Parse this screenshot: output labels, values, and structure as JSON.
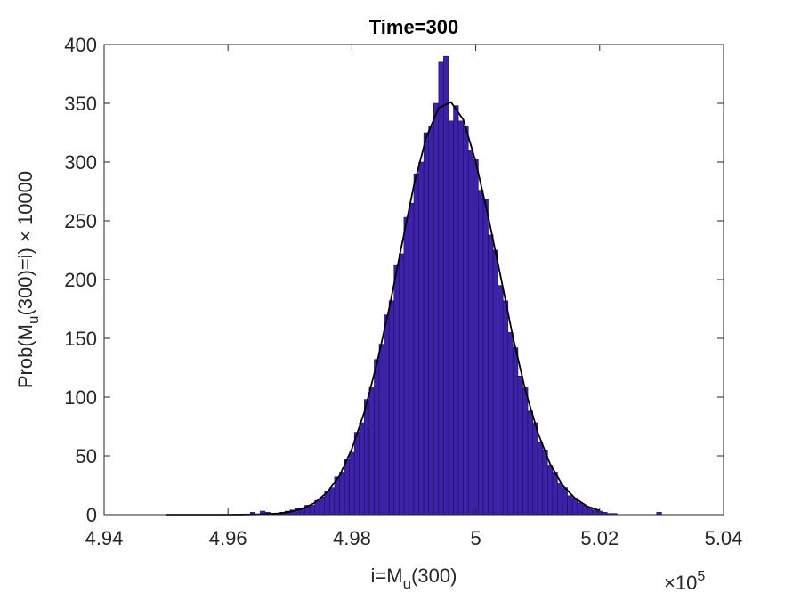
{
  "chart_data": {
    "type": "histogram",
    "title": "Time=300",
    "xlabel": {
      "text": "i=M",
      "sub": "u",
      "after": "(300)"
    },
    "ylabel": {
      "text": "Prob(M",
      "sub": "u",
      "after": "(300)=i) × 10000"
    },
    "x_multiplier": {
      "base": "×10",
      "exp": "5"
    },
    "xlim": [
      4.94,
      5.04
    ],
    "xticks": [
      4.94,
      4.96,
      4.98,
      5,
      5.02,
      5.04
    ],
    "ylim": [
      0,
      400
    ],
    "yticks": [
      0,
      50,
      100,
      150,
      200,
      250,
      300,
      350,
      400
    ],
    "color": "#3b22a6",
    "edge_color": "#1c1060",
    "bins": [
      4.95,
      4.9508,
      4.9516,
      4.9524,
      4.9532,
      4.954,
      4.9548,
      4.9556,
      4.9564,
      4.9572,
      4.958,
      4.9588,
      4.9596,
      4.9604,
      4.9612,
      4.962,
      4.9628,
      4.9636,
      4.9644,
      4.9652,
      4.966,
      4.9668,
      4.9676,
      4.9684,
      4.9692,
      4.97,
      4.9708,
      4.9716,
      4.9724,
      4.9732,
      4.974,
      4.9748,
      4.9756,
      4.9764,
      4.9772,
      4.978,
      4.9788,
      4.9796,
      4.9804,
      4.9812,
      4.982,
      4.9828,
      4.9836,
      4.9844,
      4.9852,
      4.986,
      4.9868,
      4.9876,
      4.9884,
      4.9892,
      4.99,
      4.9908,
      4.9916,
      4.9924,
      4.9932,
      4.994,
      4.9948,
      4.9956,
      4.9964,
      4.9972,
      4.998,
      4.9988,
      4.9996,
      5.0004,
      5.0012,
      5.002,
      5.0028,
      5.0036,
      5.0044,
      5.0052,
      5.006,
      5.0068,
      5.0076,
      5.0084,
      5.0092,
      5.01,
      5.0108,
      5.0116,
      5.0124,
      5.0132,
      5.014,
      5.0148,
      5.0156,
      5.0164,
      5.0172,
      5.018,
      5.0188,
      5.0196,
      5.0204,
      5.0212,
      5.022,
      5.0228,
      5.0236,
      5.0244,
      5.0252,
      5.026,
      5.0268,
      5.0276,
      5.0284,
      5.0292,
      5.03
    ],
    "values": [
      0,
      0,
      0,
      0,
      0,
      0,
      0,
      0,
      0,
      0,
      0,
      0,
      0,
      0,
      0,
      0,
      0,
      2,
      0,
      3,
      2,
      1,
      1,
      2,
      3,
      4,
      5,
      5,
      8,
      8,
      12,
      15,
      20,
      23,
      32,
      36,
      47,
      53,
      70,
      78,
      98,
      108,
      132,
      145,
      170,
      182,
      212,
      222,
      253,
      265,
      290,
      300,
      325,
      330,
      350,
      385,
      390,
      335,
      348,
      335,
      330,
      310,
      302,
      276,
      268,
      238,
      225,
      195,
      182,
      155,
      142,
      118,
      108,
      88,
      78,
      62,
      55,
      42,
      36,
      27,
      23,
      16,
      14,
      10,
      8,
      6,
      4,
      3,
      2,
      1,
      1,
      0,
      0,
      0,
      0,
      0,
      0,
      0,
      0,
      2
    ],
    "fit": {
      "color": "#000000",
      "x": [
        4.95,
        4.952,
        4.954,
        4.956,
        4.958,
        4.96,
        4.962,
        4.964,
        4.966,
        4.968,
        4.97,
        4.972,
        4.974,
        4.976,
        4.978,
        4.98,
        4.982,
        4.984,
        4.986,
        4.988,
        4.99,
        4.992,
        4.994,
        4.996,
        4.998,
        5,
        5.002,
        5.004,
        5.006,
        5.008,
        5.01,
        5.012,
        5.014,
        5.016,
        5.018,
        5.02
      ],
      "values": [
        0,
        0,
        0,
        0,
        0.01,
        0.02,
        0.06,
        0.17,
        0.44,
        1,
        2.4,
        5,
        10,
        19,
        33,
        56,
        87,
        128,
        175,
        228,
        280,
        321,
        346,
        351,
        336,
        300,
        254,
        203,
        151,
        106,
        70,
        43,
        25,
        14,
        7,
        3.5
      ]
    }
  }
}
